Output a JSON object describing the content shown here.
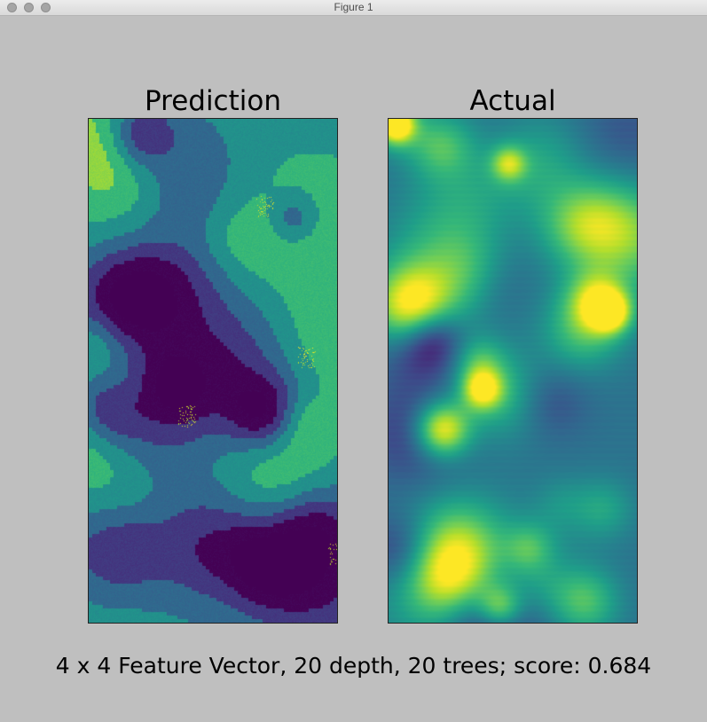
{
  "window": {
    "title": "Figure 1"
  },
  "chart_data": [
    {
      "type": "heatmap",
      "title": "Prediction",
      "colormap": "viridis",
      "value_range": [
        0,
        1
      ],
      "colors": {
        "low": "#440154",
        "mid_low": "#3b528b",
        "mid": "#21918c",
        "mid_high": "#5ec962",
        "high": "#fde725"
      }
    },
    {
      "type": "heatmap",
      "title": "Actual",
      "colormap": "viridis",
      "value_range": [
        0,
        1
      ]
    }
  ],
  "caption": "4 x 4 Feature Vector, 20 depth, 20 trees; score: 0.684"
}
